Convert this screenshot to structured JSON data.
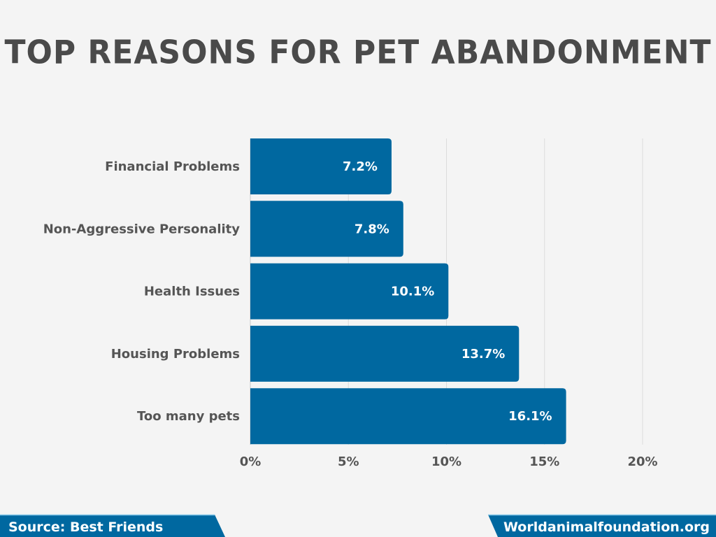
{
  "chart_data": {
    "type": "bar",
    "orientation": "horizontal",
    "title": "TOP REASONS FOR PET ABANDONMENT",
    "categories": [
      "Financial Problems",
      "Non-Aggressive Personality",
      "Health Issues",
      "Housing Problems",
      "Too many pets"
    ],
    "values": [
      7.2,
      7.8,
      10.1,
      13.7,
      16.1
    ],
    "value_labels": [
      "7.2%",
      "7.8%",
      "10.1%",
      "13.7%",
      "16.1%"
    ],
    "xlim": [
      0,
      20
    ],
    "xticks": [
      0,
      5,
      10,
      15,
      20
    ],
    "xtick_labels": [
      "0%",
      "5%",
      "10%",
      "15%",
      "20%"
    ],
    "grid": true,
    "xlabel": "",
    "ylabel": ""
  },
  "footer": {
    "source": "Source: Best Friends",
    "site": "Worldanimalfoundation.org"
  },
  "colors": {
    "bar": "#0068a0",
    "text": "#4a4a4a",
    "background": "#f4f4f4"
  }
}
